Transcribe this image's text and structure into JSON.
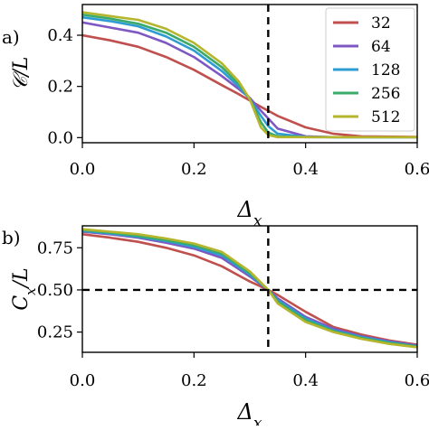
{
  "chart_data": [
    {
      "panel_label": "a)",
      "type": "line",
      "xlabel": "Δ_x",
      "ylabel": "𝒞/L",
      "xlim": [
        0.0,
        0.6
      ],
      "ylim": [
        -0.02,
        0.52
      ],
      "xticks": [
        0.0,
        0.2,
        0.4,
        0.6
      ],
      "xtick_labels": [
        "0.0",
        "0.2",
        "0.4",
        "0.6"
      ],
      "yticks": [
        0.0,
        0.2,
        0.4
      ],
      "ytick_labels": [
        "0.0",
        "0.2",
        "0.4"
      ],
      "grid": false,
      "legend_position": "top-right",
      "vlines": [
        0.333
      ],
      "hlines": [],
      "x": [
        0.0,
        0.05,
        0.1,
        0.15,
        0.2,
        0.25,
        0.28,
        0.3,
        0.32,
        0.333,
        0.35,
        0.4,
        0.45,
        0.5,
        0.6
      ],
      "series": [
        {
          "name": "32",
          "color": "#c0504d",
          "values": [
            0.4,
            0.38,
            0.355,
            0.315,
            0.265,
            0.205,
            0.17,
            0.145,
            0.12,
            0.105,
            0.085,
            0.04,
            0.015,
            0.005,
            0.003
          ]
        },
        {
          "name": "64",
          "color": "#7e57c2",
          "values": [
            0.45,
            0.43,
            0.41,
            0.37,
            0.315,
            0.24,
            0.19,
            0.155,
            0.105,
            0.075,
            0.035,
            0.005,
            0.002,
            0.002,
            0.002
          ]
        },
        {
          "name": "128",
          "color": "#2e9bd3",
          "values": [
            0.47,
            0.455,
            0.435,
            0.395,
            0.34,
            0.26,
            0.2,
            0.15,
            0.085,
            0.045,
            0.015,
            0.003,
            0.002,
            0.002,
            0.002
          ]
        },
        {
          "name": "256",
          "color": "#3aab6a",
          "values": [
            0.48,
            0.465,
            0.445,
            0.41,
            0.355,
            0.275,
            0.21,
            0.15,
            0.06,
            0.02,
            0.005,
            0.002,
            0.002,
            0.002,
            0.002
          ]
        },
        {
          "name": "512",
          "color": "#b5b52e",
          "values": [
            0.49,
            0.475,
            0.46,
            0.425,
            0.37,
            0.29,
            0.22,
            0.15,
            0.04,
            0.01,
            0.002,
            0.002,
            0.002,
            0.002,
            0.002
          ]
        }
      ]
    },
    {
      "panel_label": "b)",
      "type": "line",
      "xlabel": "Δ_x",
      "ylabel": "C_x/L",
      "xlim": [
        0.0,
        0.6
      ],
      "ylim": [
        0.13,
        0.88
      ],
      "xticks": [
        0.0,
        0.2,
        0.4,
        0.6
      ],
      "xtick_labels": [
        "0.0",
        "0.2",
        "0.4",
        "0.6"
      ],
      "yticks": [
        0.25,
        0.5,
        0.75
      ],
      "ytick_labels": [
        "0.25",
        "0.50",
        "0.75"
      ],
      "grid": false,
      "vlines": [
        0.333
      ],
      "hlines": [
        0.5
      ],
      "x": [
        0.0,
        0.05,
        0.1,
        0.15,
        0.2,
        0.25,
        0.3,
        0.333,
        0.35,
        0.4,
        0.45,
        0.5,
        0.55,
        0.6
      ],
      "series": [
        {
          "name": "32",
          "color": "#c0504d",
          "values": [
            0.83,
            0.81,
            0.785,
            0.75,
            0.705,
            0.64,
            0.55,
            0.5,
            0.47,
            0.37,
            0.28,
            0.235,
            0.2,
            0.175
          ]
        },
        {
          "name": "64",
          "color": "#7e57c2",
          "values": [
            0.845,
            0.83,
            0.81,
            0.78,
            0.745,
            0.69,
            0.58,
            0.5,
            0.45,
            0.34,
            0.27,
            0.225,
            0.195,
            0.17
          ]
        },
        {
          "name": "128",
          "color": "#2e9bd3",
          "values": [
            0.85,
            0.835,
            0.815,
            0.79,
            0.755,
            0.705,
            0.59,
            0.5,
            0.44,
            0.33,
            0.26,
            0.22,
            0.19,
            0.165
          ]
        },
        {
          "name": "256",
          "color": "#3aab6a",
          "values": [
            0.855,
            0.84,
            0.82,
            0.795,
            0.765,
            0.715,
            0.6,
            0.5,
            0.43,
            0.32,
            0.255,
            0.215,
            0.185,
            0.165
          ]
        },
        {
          "name": "512",
          "color": "#b5b52e",
          "values": [
            0.86,
            0.845,
            0.83,
            0.805,
            0.775,
            0.725,
            0.61,
            0.5,
            0.42,
            0.31,
            0.25,
            0.21,
            0.18,
            0.16
          ]
        }
      ]
    }
  ]
}
